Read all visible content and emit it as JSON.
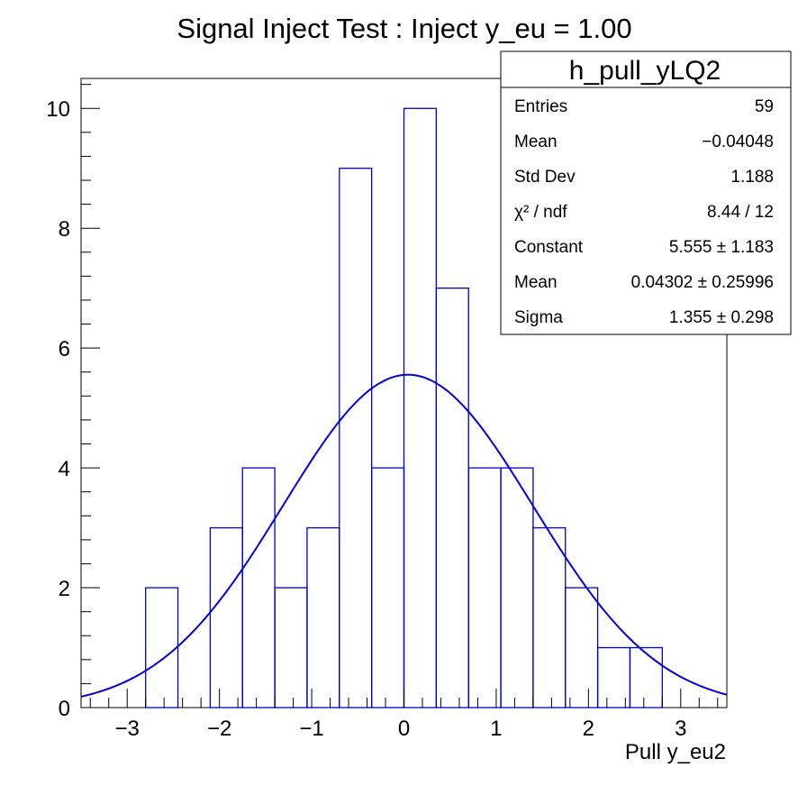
{
  "chart_data": {
    "type": "bar",
    "title": "Signal Inject Test : Inject y_eu = 1.00",
    "xlabel": "Pull y_eu2",
    "ylabel": "",
    "xlim": [
      -3.5,
      3.5
    ],
    "ylim": [
      0,
      10.5
    ],
    "x_ticks": [
      -3,
      -2,
      -1,
      0,
      1,
      2,
      3
    ],
    "x_tick_labels": [
      "−3",
      "−2",
      "−1",
      "0",
      "1",
      "2",
      "3"
    ],
    "y_ticks": [
      0,
      2,
      4,
      6,
      8,
      10
    ],
    "y_tick_labels": [
      "0",
      "2",
      "4",
      "6",
      "8",
      "10"
    ],
    "histogram": {
      "name": "h_pull_yLQ2",
      "color": "#0000cc",
      "bin_edges": [
        -3.5,
        -3.15,
        -2.8,
        -2.45,
        -2.1,
        -1.75,
        -1.4,
        -1.05,
        -0.7,
        -0.35,
        0.0,
        0.35,
        0.7,
        1.05,
        1.4,
        1.75,
        2.1,
        2.45,
        2.8,
        3.15,
        3.5
      ],
      "counts": [
        0,
        0,
        2,
        0,
        3,
        4,
        2,
        3,
        9,
        4,
        10,
        7,
        4,
        4,
        3,
        2,
        1,
        1,
        0,
        0
      ]
    },
    "fit": {
      "type": "gaussian",
      "color": "#0000dd",
      "constant": 5.555,
      "mean": 0.04302,
      "sigma": 1.355
    },
    "stats_box": {
      "title": "h_pull_yLQ2",
      "rows": [
        {
          "label": "Entries",
          "value": "59"
        },
        {
          "label": "Mean",
          "value": "−0.04048"
        },
        {
          "label": "Std Dev",
          "value": "1.188"
        },
        {
          "label": "χ² / ndf",
          "value": "8.44 / 12"
        },
        {
          "label": "Constant",
          "value": "5.555 ± 1.183"
        },
        {
          "label": "Mean",
          "value": "0.04302 ± 0.25996"
        },
        {
          "label": "Sigma",
          "value": "1.355 ± 0.298"
        }
      ],
      "placement": "top-right"
    },
    "grid": false
  }
}
